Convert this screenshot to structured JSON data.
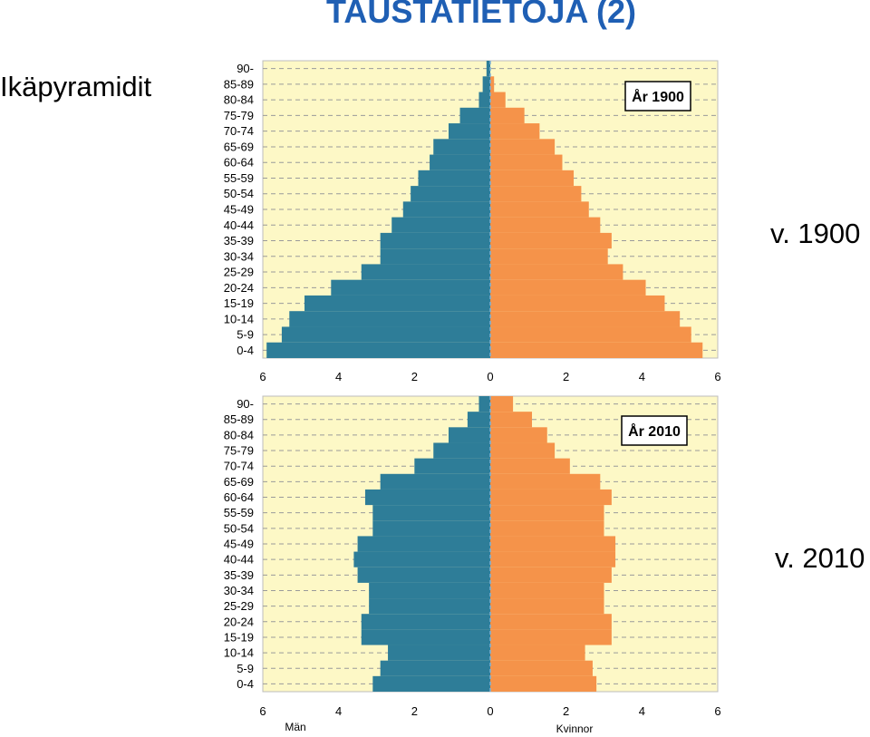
{
  "slide": {
    "title": "TAUSTATIETOJA (2)",
    "subtitle": "Ikäpyramidit",
    "label_1900": "v. 1900",
    "label_2010": "v. 2010"
  },
  "colors": {
    "men": "#2e7d98",
    "women": "#f5934a",
    "background": "#fdf8c6",
    "grid": "#9a9a9a",
    "center_line": "#7fb1d6",
    "title": "#1f5fb4"
  },
  "chart_data": [
    {
      "type": "bar",
      "orientation": "horizontal",
      "title": "År 1900",
      "categories": [
        "90-",
        "85-89",
        "80-84",
        "75-79",
        "70-74",
        "65-69",
        "60-64",
        "55-59",
        "50-54",
        "45-49",
        "40-44",
        "35-39",
        "30-34",
        "25-29",
        "20-24",
        "15-19",
        "10-14",
        "5-9",
        "0-4"
      ],
      "series": [
        {
          "name": "",
          "side": "left",
          "values": [
            0.1,
            0.2,
            0.3,
            0.8,
            1.1,
            1.5,
            1.6,
            1.9,
            2.1,
            2.3,
            2.6,
            2.9,
            2.9,
            3.4,
            4.2,
            4.9,
            5.3,
            5.5,
            5.9
          ]
        },
        {
          "name": "",
          "side": "right",
          "values": [
            0.0,
            0.1,
            0.4,
            0.9,
            1.3,
            1.7,
            1.9,
            2.2,
            2.4,
            2.6,
            2.9,
            3.2,
            3.1,
            3.5,
            4.1,
            4.6,
            5.0,
            5.3,
            5.6
          ]
        }
      ],
      "xlim": [
        -6,
        6
      ],
      "xticks": [
        "6",
        "4",
        "2",
        "0",
        "2",
        "4",
        "6"
      ],
      "xlabel_left": "",
      "xlabel_right": "",
      "grid": true
    },
    {
      "type": "bar",
      "orientation": "horizontal",
      "title": "År 2010",
      "categories": [
        "90-",
        "85-89",
        "80-84",
        "75-79",
        "70-74",
        "65-69",
        "60-64",
        "55-59",
        "50-54",
        "45-49",
        "40-44",
        "35-39",
        "30-34",
        "25-29",
        "20-24",
        "15-19",
        "10-14",
        "5-9",
        "0-4"
      ],
      "series": [
        {
          "name": "Män",
          "side": "left",
          "values": [
            0.3,
            0.6,
            1.1,
            1.5,
            2.0,
            2.9,
            3.3,
            3.1,
            3.1,
            3.5,
            3.6,
            3.5,
            3.2,
            3.2,
            3.4,
            3.4,
            2.7,
            2.9,
            3.1
          ]
        },
        {
          "name": "Kvinnor",
          "side": "right",
          "values": [
            0.6,
            1.1,
            1.5,
            1.7,
            2.1,
            2.9,
            3.2,
            3.0,
            3.0,
            3.3,
            3.3,
            3.2,
            3.0,
            3.0,
            3.2,
            3.2,
            2.5,
            2.7,
            2.8
          ]
        }
      ],
      "xlim": [
        -6,
        6
      ],
      "xticks": [
        "6",
        "4",
        "2",
        "0",
        "2",
        "4",
        "6"
      ],
      "xlabel_left": "Män",
      "xlabel_right": "Kvinnor",
      "grid": true
    }
  ]
}
